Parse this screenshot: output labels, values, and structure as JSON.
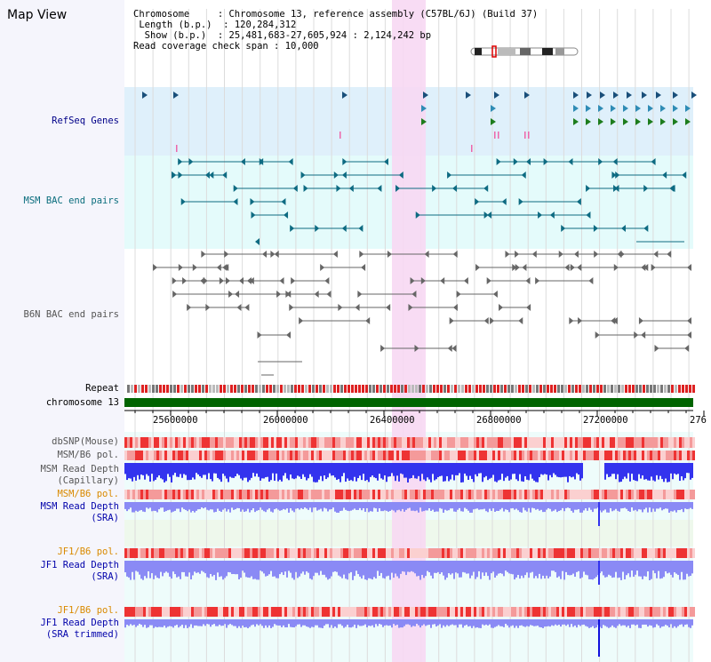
{
  "page_title": "Map View",
  "info": {
    "chromosome_label": "Chromosome",
    "chromosome_value": "Chromosome 13, reference assembly (C57BL/6J) (Build 37)",
    "length_label": "Length (b.p.)",
    "length_value": "120,284,312",
    "show_label": "Show (b.p.)",
    "show_value": "25,481,683-27,605,924 : 2,124,242 bp",
    "coverage_label": "Read coverage check span",
    "coverage_value": "10,000"
  },
  "tracks": {
    "refseq": "RefSeq Genes",
    "msm_bac": "MSM BAC end pairs",
    "b6n_bac": "B6N BAC end pairs",
    "repeat": "Repeat",
    "chromosome": "chromosome 13",
    "dbsnp": "dbSNP(Mouse)",
    "msm_b6_pol_1": "MSM/B6 pol.",
    "msm_read_depth_cap_1": "MSM Read Depth",
    "msm_read_depth_cap_2": "(Capillary)",
    "msm_b6_pol_2": "MSM/B6 pol.",
    "msm_read_depth_sra_1": "MSM Read Depth",
    "msm_read_depth_sra_2": "(SRA)",
    "jf1_b6_pol_1": "JF1/B6 pol.",
    "jf1_read_depth_sra_1": "JF1 Read Depth",
    "jf1_read_depth_sra_2": "(SRA)",
    "jf1_b6_pol_2": "JF1/B6 pol.",
    "jf1_read_depth_trim_1": "JF1 Read Depth",
    "jf1_read_depth_trim_2": "(SRA trimmed)"
  },
  "axis": {
    "ticks": [
      "25600000",
      "26000000",
      "26400000",
      "26800000",
      "27200000",
      "276"
    ]
  },
  "colors": {
    "refseq_bg": "#dff0fb",
    "msm_bac_bg": "#e4fbfb",
    "highlight": "#f7d8f3",
    "chromosome_bar": "#006400",
    "depth_blue": "#3333ee",
    "depth_light": "#8a8af5",
    "snp_red": "#ee3333"
  }
}
